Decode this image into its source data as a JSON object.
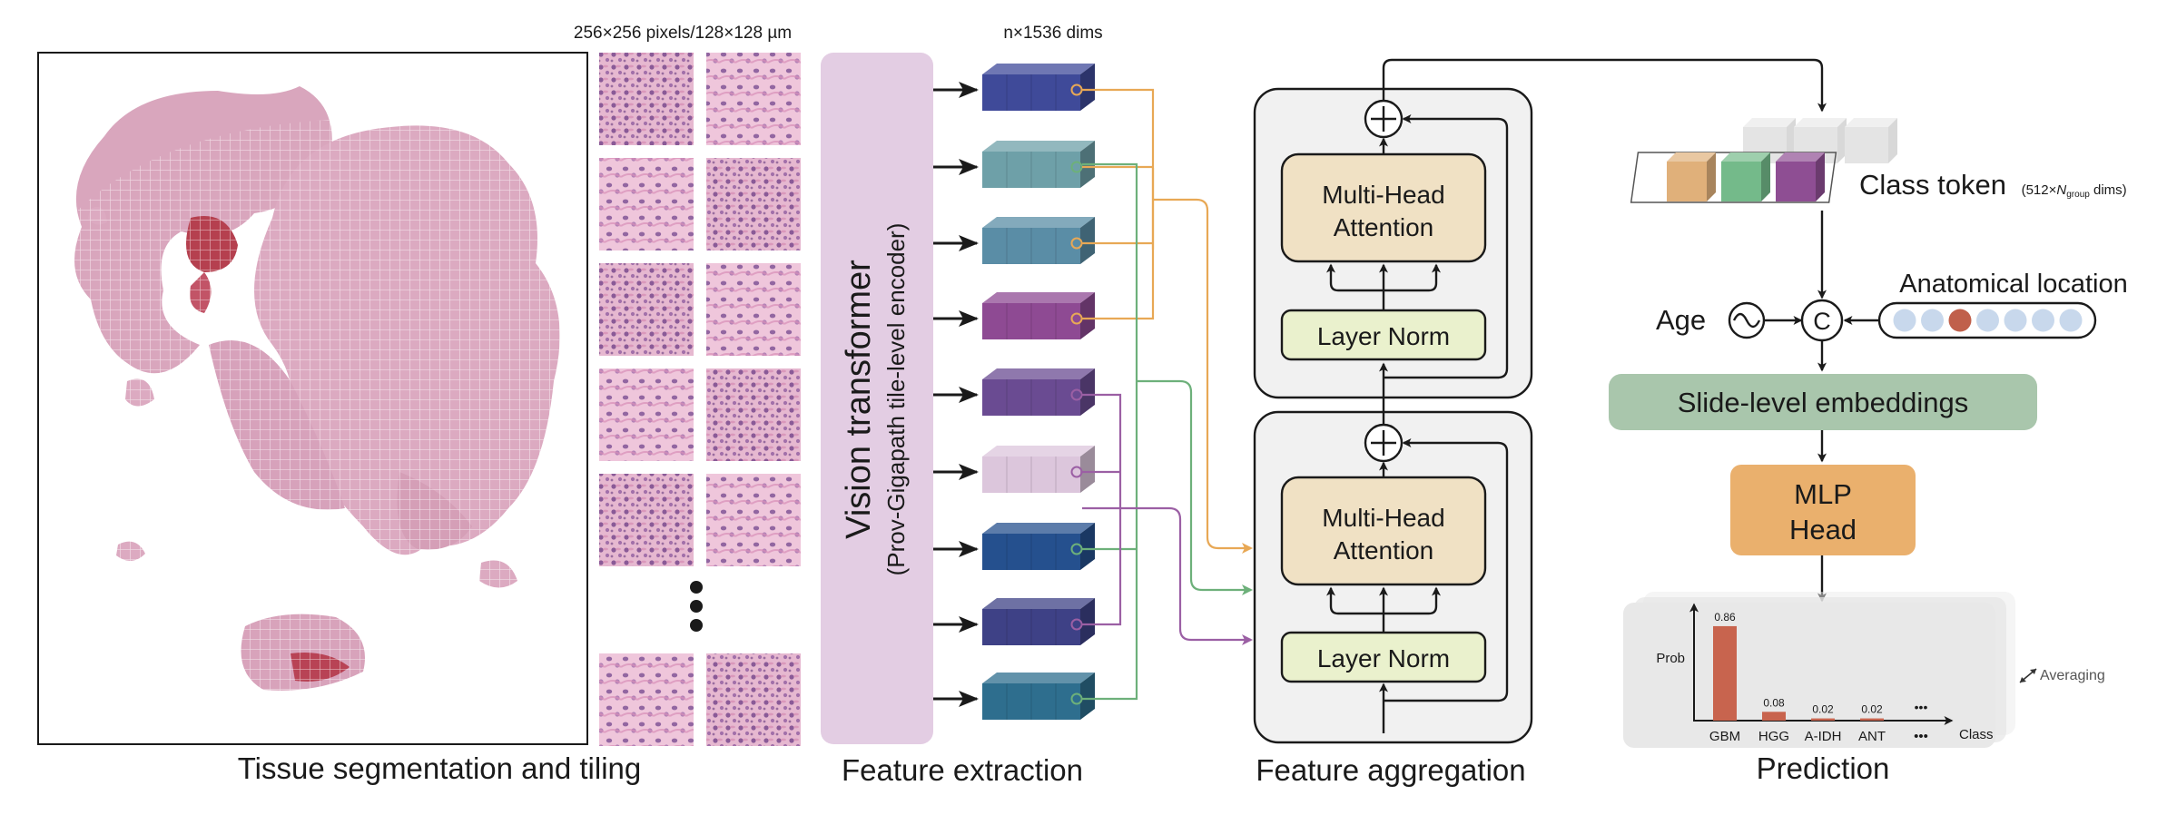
{
  "panels": {
    "tissue": "Tissue segmentation and tiling",
    "extraction": "Feature extraction",
    "aggregation": "Feature aggregation",
    "prediction": "Prediction"
  },
  "tile_size_label": "256×256 pixels/128×128 µm",
  "embedding_dims_label": "n×1536 dims",
  "encoder": {
    "title": "Vision transformer",
    "subtitle": "(Prov-Gigapath tile-level encoder)"
  },
  "block": {
    "attention": [
      "Multi-Head",
      "Attention"
    ],
    "norm": "Layer Norm"
  },
  "class_token": {
    "label": "Class token",
    "dims_prefix": "(512×",
    "dims_var": "N",
    "dims_sub": "group",
    "dims_suffix": " dims)"
  },
  "age_label": "Age",
  "concat_symbol": "C",
  "location_label": "Anatomical location",
  "slide_embeddings": "Slide-level embeddings",
  "mlp_head": [
    "MLP",
    "Head"
  ],
  "averaging_label": "Averaging",
  "chart_data": {
    "type": "bar",
    "categories": [
      "GBM",
      "HGG",
      "A-IDH",
      "ANT",
      "•••"
    ],
    "values": [
      0.86,
      0.08,
      0.02,
      0.02,
      null
    ],
    "value_labels": [
      "0.86",
      "0.08",
      "0.02",
      "0.02",
      "•••"
    ],
    "ylabel": "Prob",
    "xlabel": "Class",
    "ylim": [
      0,
      1
    ],
    "bar_color": "#c8644e"
  },
  "colors": {
    "encoder_bg": "#e3cde3",
    "attention_fill": "#f0e1c4",
    "norm_fill": "#eaf1cd",
    "slide_fill": "#a9c6ac",
    "mlp_fill": "#eab06d",
    "orange_route": "#e8a855",
    "green_route": "#6db07a",
    "purple_route": "#9b5fa4",
    "token_orange": "#e0b07a",
    "token_green": "#74ba8a",
    "token_purple": "#8e4e93",
    "location_dot": "#c8d8ec",
    "location_active": "#c0604b"
  },
  "embedding_colors": [
    "#3f4a99",
    "#6ea0a8",
    "#5a8da6",
    "#8e4a93",
    "#6a4b92",
    "#dcc6dc",
    "#25508e",
    "#3e4186",
    "#2e6e8e"
  ],
  "location_dots": [
    0,
    0,
    1,
    0,
    0,
    0,
    0
  ],
  "icons": {
    "add": "plus-circle-icon",
    "concat": "concat-circle-icon",
    "age": "sine-wave-icon",
    "averaging": "double-arrow-icon",
    "more": "ellipsis-dots-icon"
  }
}
